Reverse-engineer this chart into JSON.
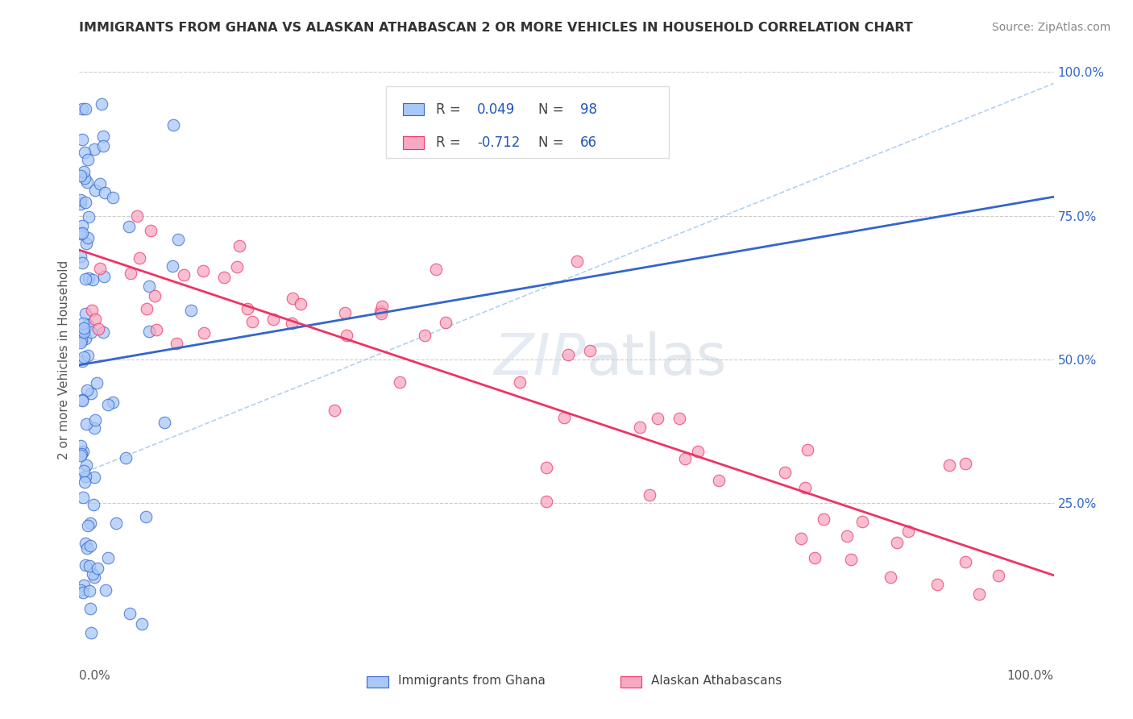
{
  "title": "IMMIGRANTS FROM GHANA VS ALASKAN ATHABASCAN 2 OR MORE VEHICLES IN HOUSEHOLD CORRELATION CHART",
  "source": "Source: ZipAtlas.com",
  "ylabel": "2 or more Vehicles in Household",
  "blue_color": "#A8C8F8",
  "pink_color": "#F8A8C0",
  "blue_line_color": "#3366CC",
  "pink_line_color": "#EE3366",
  "watermark_color": "#C8D8E8",
  "legend_label1": "Immigrants from Ghana",
  "legend_label2": "Alaskan Athabascans",
  "r1": "0.049",
  "n1": "98",
  "r2": "-0.712",
  "n2": "66"
}
